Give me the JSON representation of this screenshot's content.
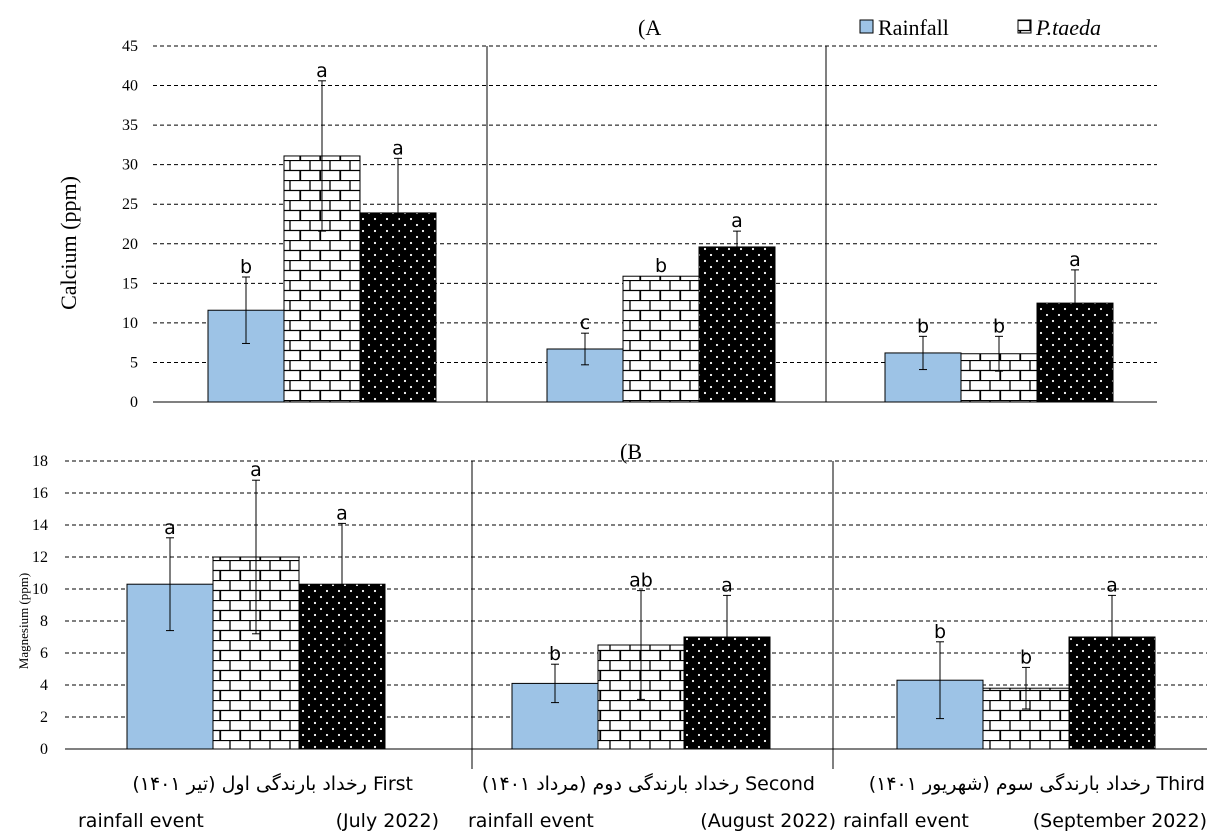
{
  "legend": [
    {
      "name": "Rainfall",
      "italic": false
    },
    {
      "name": "P.taeda",
      "italic": true
    }
  ],
  "categories": [
    {
      "line1": "رخداد بارندگی اول (تیر ۱۴۰۱)  First",
      "line2_left": "rainfall event",
      "line2_right": "(July 2022)"
    },
    {
      "line1": "رخداد بارندگی دوم (مرداد ۱۴۰۱)  Second",
      "line2_left": "rainfall event",
      "line2_right": "(August 2022)"
    },
    {
      "line1": "رخداد بارندگی سوم (شهریور ۱۴۰۱)  Third",
      "line2_left": "rainfall event",
      "line2_right": "(September 2022)"
    }
  ],
  "colors": {
    "rainfall": "#9dc3e6",
    "brick_bg": "#ffffff",
    "dots_bg": "#000000",
    "grid": "#000000"
  },
  "chart_data": [
    {
      "type": "bar",
      "title": "(A",
      "ylabel": "Calcium (ppm)",
      "ylim": [
        0,
        45
      ],
      "yticks": [
        0,
        5,
        10,
        15,
        20,
        25,
        30,
        35,
        40,
        45
      ],
      "grid": true,
      "legend_position": "top-right",
      "series": [
        {
          "name": "Rainfall",
          "pattern": "solid",
          "values": [
            11.6,
            6.7,
            6.2
          ],
          "errors": [
            4.2,
            2.0,
            2.1
          ],
          "letters": [
            "b",
            "c",
            "b"
          ]
        },
        {
          "name": "",
          "pattern": "brick",
          "values": [
            31.1,
            15.9,
            6.1
          ],
          "errors": [
            9.5,
            0.0,
            2.2
          ],
          "letters": [
            "a",
            "b",
            "b"
          ]
        },
        {
          "name": "",
          "pattern": "dots",
          "values": [
            23.9,
            19.6,
            12.5
          ],
          "errors": [
            6.9,
            2.0,
            4.2
          ],
          "letters": [
            "a",
            "a",
            "a"
          ]
        }
      ]
    },
    {
      "type": "bar",
      "title": "(B",
      "ylabel": "Magnesium (ppm)",
      "ylim": [
        0,
        18
      ],
      "yticks": [
        0,
        2,
        4,
        6,
        8,
        10,
        12,
        14,
        16,
        18
      ],
      "grid": true,
      "legend_position": "none",
      "series": [
        {
          "name": "Rainfall",
          "pattern": "solid",
          "values": [
            10.3,
            4.1,
            4.3
          ],
          "errors": [
            2.9,
            1.2,
            2.4
          ],
          "letters": [
            "a",
            "b",
            "b"
          ]
        },
        {
          "name": "",
          "pattern": "brick",
          "values": [
            12.0,
            6.5,
            3.8
          ],
          "errors": [
            4.8,
            3.4,
            1.3
          ],
          "letters": [
            "a",
            "ab",
            "b"
          ]
        },
        {
          "name": "",
          "pattern": "dots",
          "values": [
            10.3,
            7.0,
            7.0
          ],
          "errors": [
            3.8,
            2.6,
            2.6
          ],
          "letters": [
            "a",
            "a",
            "a"
          ]
        }
      ]
    }
  ]
}
